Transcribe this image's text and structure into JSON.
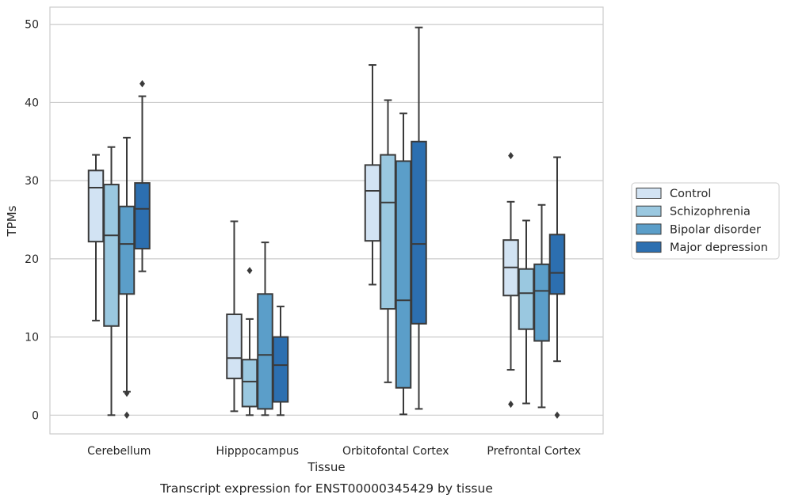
{
  "chart_data": {
    "type": "box",
    "caption": "Transcript expression for ENST00000345429 by tissue",
    "xlabel": "Tissue",
    "ylabel": "TPMs",
    "ylim": [
      -2.4,
      52.2
    ],
    "yticks": [
      0,
      10,
      20,
      30,
      40,
      50
    ],
    "grid": "horizontal",
    "legend_position": "right",
    "categories": [
      "Cerebellum",
      "Hipppocampus",
      "Orbitofontal Cortex",
      "Prefrontal Cortex"
    ],
    "series": [
      {
        "name": "Control",
        "color": "#d2e3f3",
        "boxes": [
          {
            "min": 12.1,
            "q1": 22.2,
            "median": 29.1,
            "q3": 31.3,
            "max": 33.3,
            "outliers": []
          },
          {
            "min": 0.5,
            "q1": 4.7,
            "median": 7.3,
            "q3": 12.9,
            "max": 24.8,
            "outliers": []
          },
          {
            "min": 16.7,
            "q1": 22.3,
            "median": 28.7,
            "q3": 32.0,
            "max": 44.8,
            "outliers": []
          },
          {
            "min": 5.8,
            "q1": 15.3,
            "median": 18.9,
            "q3": 22.4,
            "max": 27.3,
            "outliers": [
              33.2,
              1.4
            ]
          }
        ]
      },
      {
        "name": "Schizophrenia",
        "color": "#9ac8e0",
        "boxes": [
          {
            "min": 0.0,
            "q1": 11.4,
            "median": 23.0,
            "q3": 29.5,
            "max": 34.3,
            "outliers": []
          },
          {
            "min": 0.0,
            "q1": 1.1,
            "median": 4.3,
            "q3": 7.1,
            "max": 12.3,
            "outliers": [
              18.5
            ]
          },
          {
            "min": 4.2,
            "q1": 13.6,
            "median": 27.2,
            "q3": 33.3,
            "max": 40.3,
            "outliers": []
          },
          {
            "min": 1.5,
            "q1": 11.0,
            "median": 15.6,
            "q3": 18.7,
            "max": 24.9,
            "outliers": []
          }
        ]
      },
      {
        "name": "Bipolar disorder",
        "color": "#5b9ec9",
        "boxes": [
          {
            "min": 3.0,
            "q1": 15.5,
            "median": 21.9,
            "q3": 26.7,
            "max": 35.5,
            "outliers": [
              2.8,
              0.0
            ]
          },
          {
            "min": 0.0,
            "q1": 0.8,
            "median": 7.7,
            "q3": 15.5,
            "max": 22.1,
            "outliers": []
          },
          {
            "min": 0.1,
            "q1": 3.5,
            "median": 14.7,
            "q3": 32.5,
            "max": 38.6,
            "outliers": []
          },
          {
            "min": 1.0,
            "q1": 9.5,
            "median": 15.9,
            "q3": 19.3,
            "max": 26.9,
            "outliers": []
          }
        ]
      },
      {
        "name": "Major depression",
        "color": "#2c6fb0",
        "boxes": [
          {
            "min": 18.4,
            "q1": 21.3,
            "median": 26.4,
            "q3": 29.7,
            "max": 40.8,
            "outliers": [
              42.4
            ]
          },
          {
            "min": 0.0,
            "q1": 1.7,
            "median": 6.4,
            "q3": 10.0,
            "max": 13.9,
            "outliers": []
          },
          {
            "min": 0.8,
            "q1": 11.7,
            "median": 21.9,
            "q3": 35.0,
            "max": 49.6,
            "outliers": []
          },
          {
            "min": 6.9,
            "q1": 15.5,
            "median": 18.2,
            "q3": 23.1,
            "max": 33.0,
            "outliers": [
              0.0
            ]
          }
        ]
      }
    ]
  }
}
